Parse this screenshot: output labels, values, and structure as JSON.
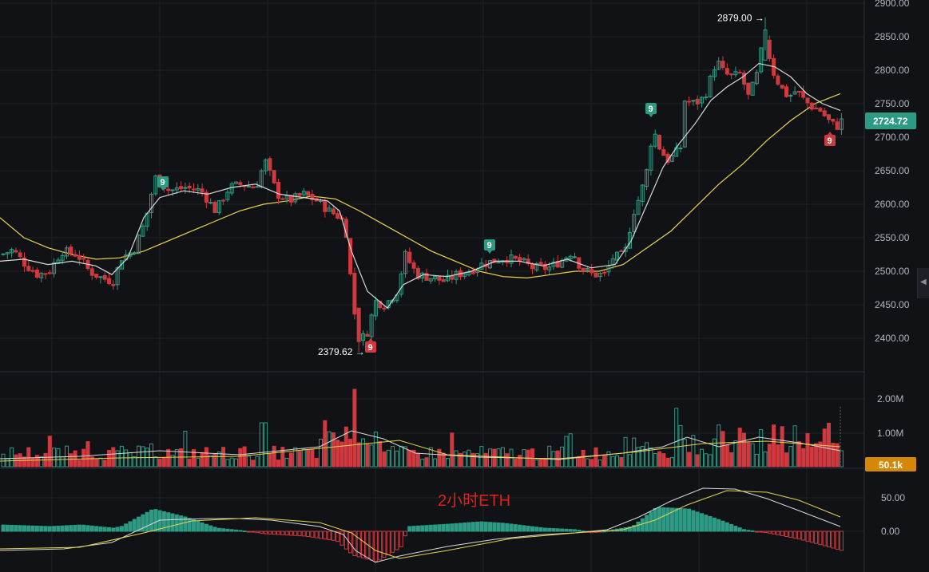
{
  "colors": {
    "background": "#111215",
    "grid": "#1f2127",
    "up": "#2d9b84",
    "down": "#d0393f",
    "ma_fast": "#d9d9d9",
    "ma_slow": "#e8d44d",
    "price_badge": "#2d9b84",
    "volume_badge": "#d48806",
    "watermark": "#e0201c"
  },
  "watermark": "2小时ETH",
  "price_badge": "2724.72",
  "volume_badge": "50.1k",
  "chart_data": [
    {
      "type": "candlestick",
      "panel": "price",
      "y_ticks": [
        "2900.00",
        "2850.00",
        "2800.00",
        "2750.00",
        "2700.00",
        "2650.00",
        "2600.00",
        "2550.00",
        "2500.00",
        "2450.00",
        "2400.00"
      ],
      "ylim": [
        2345,
        2905
      ],
      "last_price": 2724.72,
      "annotations": [
        {
          "label": "2879.00 →",
          "value": 2879.0
        },
        {
          "label": "2379.62 →",
          "value": 2379.62
        }
      ],
      "signals": [
        {
          "label": "9",
          "direction": "up"
        },
        {
          "label": "9",
          "direction": "up"
        },
        {
          "label": "9",
          "direction": "up"
        },
        {
          "label": "9",
          "direction": "down"
        },
        {
          "label": "9",
          "direction": "down"
        }
      ],
      "close_path": [
        [
          0,
          2525
        ],
        [
          14,
          2532
        ],
        [
          30,
          2510
        ],
        [
          45,
          2495
        ],
        [
          60,
          2500
        ],
        [
          75,
          2530
        ],
        [
          95,
          2525
        ],
        [
          110,
          2500
        ],
        [
          125,
          2490
        ],
        [
          140,
          2485
        ],
        [
          150,
          2520
        ],
        [
          165,
          2530
        ],
        [
          180,
          2575
        ],
        [
          192,
          2640
        ],
        [
          210,
          2620
        ],
        [
          230,
          2625
        ],
        [
          250,
          2620
        ],
        [
          268,
          2590
        ],
        [
          285,
          2625
        ],
        [
          300,
          2630
        ],
        [
          318,
          2625
        ],
        [
          330,
          2665
        ],
        [
          345,
          2615
        ],
        [
          360,
          2605
        ],
        [
          378,
          2615
        ],
        [
          395,
          2605
        ],
        [
          410,
          2590
        ],
        [
          425,
          2580
        ],
        [
          432,
          2555
        ],
        [
          440,
          2450
        ],
        [
          448,
          2395
        ],
        [
          458,
          2410
        ],
        [
          468,
          2455
        ],
        [
          480,
          2450
        ],
        [
          495,
          2470
        ],
        [
          505,
          2525
        ],
        [
          520,
          2495
        ],
        [
          540,
          2490
        ],
        [
          555,
          2485
        ],
        [
          570,
          2495
        ],
        [
          585,
          2500
        ],
        [
          600,
          2510
        ],
        [
          615,
          2515
        ],
        [
          630,
          2520
        ],
        [
          650,
          2515
        ],
        [
          665,
          2505
        ],
        [
          685,
          2505
        ],
        [
          700,
          2515
        ],
        [
          715,
          2530
        ],
        [
          725,
          2505
        ],
        [
          740,
          2495
        ],
        [
          755,
          2495
        ],
        [
          765,
          2520
        ],
        [
          780,
          2525
        ],
        [
          790,
          2585
        ],
        [
          800,
          2615
        ],
        [
          810,
          2660
        ],
        [
          815,
          2715
        ],
        [
          825,
          2680
        ],
        [
          835,
          2665
        ],
        [
          850,
          2685
        ],
        [
          855,
          2755
        ],
        [
          868,
          2750
        ],
        [
          880,
          2760
        ],
        [
          895,
          2815
        ],
        [
          905,
          2795
        ],
        [
          915,
          2790
        ],
        [
          925,
          2795
        ],
        [
          935,
          2760
        ],
        [
          945,
          2790
        ],
        [
          955,
          2855
        ],
        [
          965,
          2800
        ],
        [
          975,
          2775
        ],
        [
          985,
          2760
        ],
        [
          995,
          2770
        ],
        [
          1005,
          2755
        ],
        [
          1015,
          2745
        ],
        [
          1025,
          2740
        ],
        [
          1035,
          2725
        ],
        [
          1045,
          2715
        ],
        [
          1052,
          2725
        ]
      ],
      "ma_fast": [
        [
          0,
          2515
        ],
        [
          30,
          2518
        ],
        [
          60,
          2510
        ],
        [
          90,
          2515
        ],
        [
          120,
          2508
        ],
        [
          140,
          2495
        ],
        [
          160,
          2520
        ],
        [
          180,
          2580
        ],
        [
          200,
          2610
        ],
        [
          230,
          2620
        ],
        [
          260,
          2615
        ],
        [
          290,
          2625
        ],
        [
          320,
          2630
        ],
        [
          350,
          2615
        ],
        [
          380,
          2610
        ],
        [
          410,
          2605
        ],
        [
          425,
          2590
        ],
        [
          440,
          2530
        ],
        [
          460,
          2470
        ],
        [
          485,
          2445
        ],
        [
          505,
          2480
        ],
        [
          530,
          2495
        ],
        [
          560,
          2492
        ],
        [
          590,
          2500
        ],
        [
          620,
          2515
        ],
        [
          650,
          2515
        ],
        [
          680,
          2508
        ],
        [
          710,
          2518
        ],
        [
          740,
          2505
        ],
        [
          770,
          2510
        ],
        [
          790,
          2545
        ],
        [
          810,
          2600
        ],
        [
          830,
          2655
        ],
        [
          850,
          2690
        ],
        [
          870,
          2720
        ],
        [
          890,
          2755
        ],
        [
          910,
          2775
        ],
        [
          930,
          2790
        ],
        [
          950,
          2810
        ],
        [
          970,
          2805
        ],
        [
          990,
          2790
        ],
        [
          1010,
          2765
        ],
        [
          1030,
          2750
        ],
        [
          1052,
          2740
        ]
      ],
      "ma_slow": [
        [
          0,
          2580
        ],
        [
          30,
          2550
        ],
        [
          60,
          2535
        ],
        [
          90,
          2525
        ],
        [
          120,
          2518
        ],
        [
          150,
          2520
        ],
        [
          180,
          2530
        ],
        [
          210,
          2545
        ],
        [
          240,
          2560
        ],
        [
          270,
          2575
        ],
        [
          300,
          2590
        ],
        [
          330,
          2600
        ],
        [
          360,
          2605
        ],
        [
          390,
          2612
        ],
        [
          420,
          2608
        ],
        [
          450,
          2590
        ],
        [
          480,
          2570
        ],
        [
          510,
          2550
        ],
        [
          540,
          2530
        ],
        [
          570,
          2515
        ],
        [
          600,
          2500
        ],
        [
          630,
          2492
        ],
        [
          660,
          2490
        ],
        [
          690,
          2495
        ],
        [
          720,
          2500
        ],
        [
          750,
          2500
        ],
        [
          780,
          2510
        ],
        [
          810,
          2535
        ],
        [
          840,
          2560
        ],
        [
          870,
          2595
        ],
        [
          900,
          2630
        ],
        [
          930,
          2660
        ],
        [
          960,
          2695
        ],
        [
          990,
          2725
        ],
        [
          1020,
          2750
        ],
        [
          1052,
          2765
        ]
      ]
    },
    {
      "type": "bar",
      "panel": "volume",
      "y_ticks": [
        "2.00M",
        "1.00M"
      ],
      "ylim": [
        0,
        2300000
      ],
      "last_value": "50.1k"
    },
    {
      "type": "histogram",
      "panel": "macd",
      "y_ticks": [
        "50.00",
        "0.00"
      ],
      "ylim": [
        -50,
        80
      ]
    }
  ]
}
